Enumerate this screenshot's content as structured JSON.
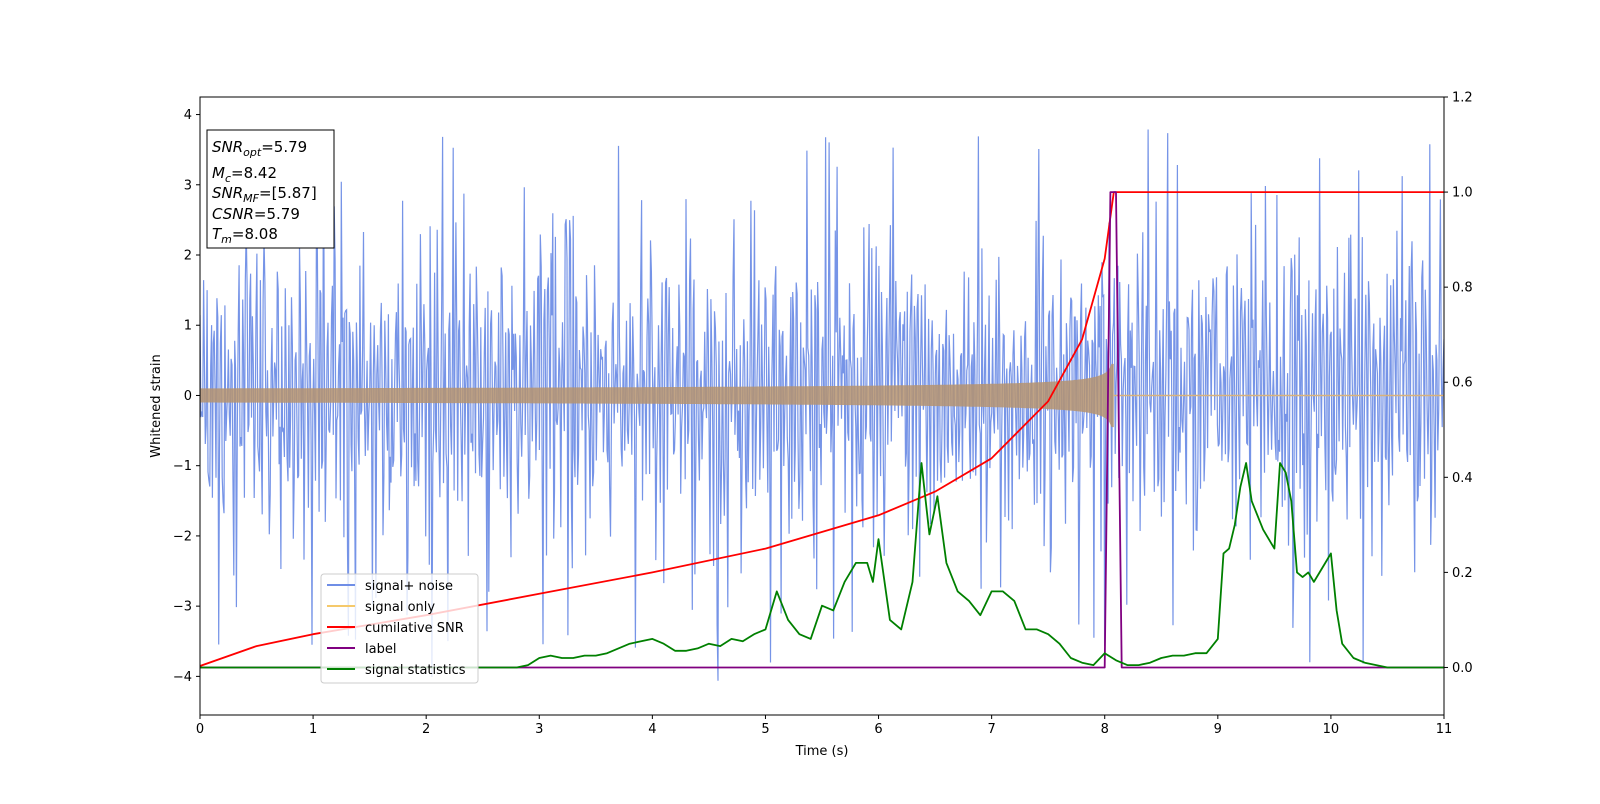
{
  "chart_data": {
    "type": "line",
    "xlabel": "Time (s)",
    "ylabel": "Whitened strain",
    "xlim": [
      0,
      11
    ],
    "ylim": [
      -4.55,
      4.25
    ],
    "y2lim": [
      -0.1,
      1.2
    ],
    "x_ticks": [
      "0",
      "1",
      "2",
      "3",
      "4",
      "5",
      "6",
      "7",
      "8",
      "9",
      "10",
      "11"
    ],
    "y_ticks": [
      "−4",
      "−3",
      "−2",
      "−1",
      "0",
      "1",
      "2",
      "3",
      "4"
    ],
    "y2_ticks": [
      "0.0",
      "0.2",
      "0.4",
      "0.6",
      "0.8",
      "1.0",
      "1.2"
    ],
    "grid": false,
    "legend_position": "lower-left",
    "info_box": {
      "snr_opt": "5.79",
      "mc": "8.42",
      "snr_mf": "[5.87]",
      "csnr": "5.79",
      "tm": "8.08"
    },
    "series": [
      {
        "name": "signal+ noise",
        "color": "#6f8ee6",
        "axis": "left",
        "noise_band": [
          -2.0,
          2.2
        ],
        "noise_extremes": [
          -4.15,
          3.85
        ],
        "n_points": 1400
      },
      {
        "name": "signal only",
        "color": "#f5c96b",
        "axis": "left",
        "merger_time": 8.08,
        "peak_amplitude": 0.45
      },
      {
        "name": "cumilative SNR",
        "color": "#ff0000",
        "axis": "right",
        "x": [
          0.0,
          0.5,
          1.0,
          2.0,
          3.0,
          4.0,
          5.0,
          6.0,
          6.5,
          7.0,
          7.5,
          7.8,
          8.0,
          8.08,
          11.0
        ],
        "y": [
          0.003,
          0.045,
          0.07,
          0.11,
          0.155,
          0.2,
          0.25,
          0.32,
          0.37,
          0.44,
          0.56,
          0.69,
          0.86,
          1.0,
          1.0
        ]
      },
      {
        "name": "label",
        "color": "#800080",
        "axis": "right",
        "x": [
          0.0,
          8.0,
          8.05,
          8.1,
          8.15,
          11.0
        ],
        "y": [
          0.0,
          0.0,
          1.0,
          1.0,
          0.0,
          0.0
        ]
      },
      {
        "name": "signal statistics",
        "color": "#008000",
        "axis": "right",
        "x": [
          0.0,
          2.8,
          2.9,
          3.0,
          3.1,
          3.2,
          3.3,
          3.4,
          3.5,
          3.6,
          3.7,
          3.8,
          3.9,
          4.0,
          4.1,
          4.2,
          4.3,
          4.4,
          4.5,
          4.6,
          4.7,
          4.8,
          4.9,
          5.0,
          5.1,
          5.2,
          5.3,
          5.4,
          5.5,
          5.6,
          5.7,
          5.8,
          5.9,
          5.95,
          6.0,
          6.1,
          6.2,
          6.3,
          6.38,
          6.45,
          6.52,
          6.6,
          6.7,
          6.8,
          6.9,
          7.0,
          7.1,
          7.2,
          7.3,
          7.4,
          7.5,
          7.6,
          7.7,
          7.8,
          7.9,
          8.0,
          8.1,
          8.2,
          8.3,
          8.4,
          8.5,
          8.6,
          8.7,
          8.8,
          8.9,
          9.0,
          9.05,
          9.1,
          9.15,
          9.2,
          9.25,
          9.3,
          9.4,
          9.5,
          9.55,
          9.6,
          9.65,
          9.7,
          9.75,
          9.8,
          9.85,
          9.9,
          9.95,
          10.0,
          10.05,
          10.1,
          10.2,
          10.3,
          10.5,
          10.7,
          11.0
        ],
        "y": [
          0.0,
          0.0,
          0.005,
          0.02,
          0.025,
          0.02,
          0.02,
          0.025,
          0.025,
          0.03,
          0.04,
          0.05,
          0.055,
          0.06,
          0.05,
          0.035,
          0.035,
          0.04,
          0.05,
          0.045,
          0.06,
          0.055,
          0.07,
          0.08,
          0.16,
          0.1,
          0.07,
          0.06,
          0.13,
          0.12,
          0.18,
          0.22,
          0.22,
          0.18,
          0.27,
          0.1,
          0.08,
          0.18,
          0.43,
          0.28,
          0.36,
          0.22,
          0.16,
          0.14,
          0.11,
          0.16,
          0.16,
          0.14,
          0.08,
          0.08,
          0.07,
          0.05,
          0.02,
          0.01,
          0.005,
          0.03,
          0.015,
          0.005,
          0.005,
          0.01,
          0.02,
          0.025,
          0.025,
          0.03,
          0.03,
          0.06,
          0.24,
          0.25,
          0.3,
          0.38,
          0.43,
          0.35,
          0.29,
          0.25,
          0.43,
          0.41,
          0.35,
          0.2,
          0.19,
          0.2,
          0.18,
          0.2,
          0.22,
          0.24,
          0.12,
          0.05,
          0.02,
          0.01,
          0.0,
          0.0,
          0.0
        ]
      }
    ]
  }
}
